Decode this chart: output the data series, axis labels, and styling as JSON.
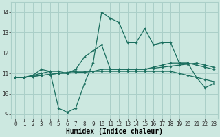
{
  "xlabel": "Humidex (Indice chaleur)",
  "x": [
    0,
    1,
    2,
    3,
    4,
    5,
    6,
    7,
    8,
    9,
    10,
    11,
    12,
    13,
    14,
    15,
    16,
    17,
    18,
    19,
    20,
    21,
    22,
    23
  ],
  "line1": [
    10.8,
    10.8,
    10.9,
    11.0,
    11.1,
    9.3,
    9.1,
    9.3,
    10.5,
    11.5,
    14.0,
    13.7,
    13.5,
    12.5,
    12.5,
    13.2,
    12.4,
    12.5,
    12.5,
    11.5,
    11.5,
    10.8,
    10.3,
    10.5
  ],
  "line2": [
    10.8,
    10.8,
    10.9,
    11.2,
    11.1,
    11.1,
    11.0,
    11.2,
    11.8,
    12.1,
    12.4,
    11.2,
    11.2,
    11.2,
    11.2,
    11.2,
    11.3,
    11.4,
    11.5,
    11.5,
    11.5,
    11.4,
    11.3,
    11.2
  ],
  "line3": [
    10.8,
    10.8,
    10.85,
    10.9,
    10.95,
    11.0,
    11.0,
    11.05,
    11.05,
    11.1,
    11.1,
    11.1,
    11.1,
    11.1,
    11.1,
    11.1,
    11.1,
    11.1,
    11.1,
    11.0,
    10.9,
    10.8,
    10.7,
    10.6
  ],
  "line4": [
    10.8,
    10.8,
    10.85,
    10.9,
    10.95,
    11.0,
    11.05,
    11.1,
    11.1,
    11.1,
    11.2,
    11.2,
    11.2,
    11.2,
    11.2,
    11.2,
    11.25,
    11.3,
    11.35,
    11.4,
    11.45,
    11.5,
    11.4,
    11.3
  ],
  "ylim": [
    8.8,
    14.5
  ],
  "xlim": [
    -0.5,
    23.5
  ],
  "bg_color": "#cce8e0",
  "grid_color": "#aacfc8",
  "line_color": "#1a6e5e",
  "tick_fontsize": 5.5,
  "xlabel_fontsize": 7
}
